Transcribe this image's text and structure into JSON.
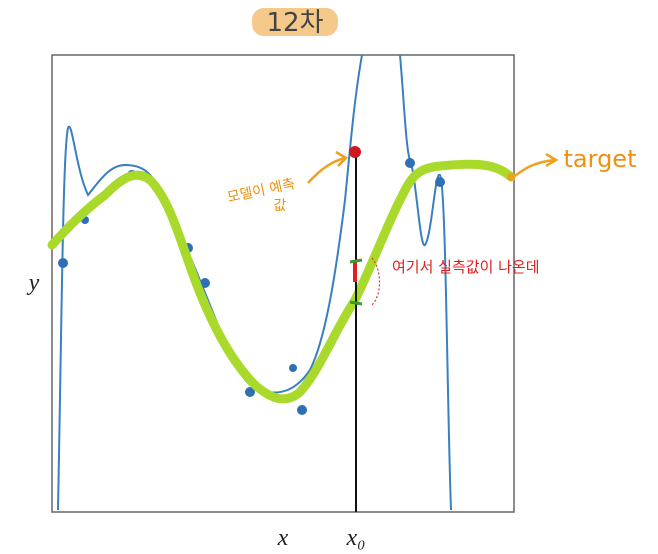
{
  "title": "12차",
  "axes": {
    "x_label": "x",
    "x0_label": "x₀",
    "y_label": "y"
  },
  "annotations": {
    "prediction": [
      "모델이 예측",
      "값"
    ],
    "target": "target",
    "observed": "여기서 실측값이 나온데"
  }
}
